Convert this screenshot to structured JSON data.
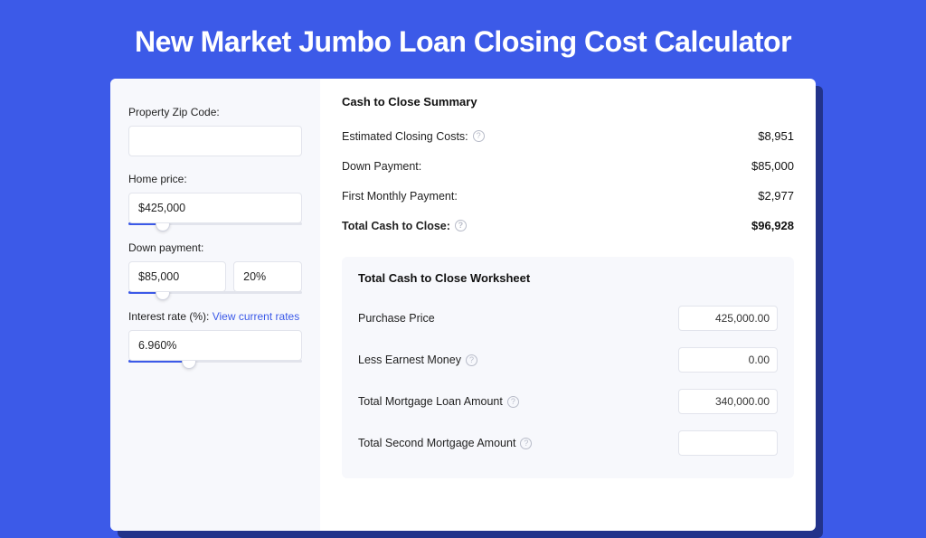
{
  "colors": {
    "page_bg": "#3c5ae8",
    "shadow_card": "#22338a",
    "card_bg": "#ffffff",
    "panel_bg": "#f7f8fc",
    "input_border": "#e2e4ec",
    "slider_fill": "#3c5ae8",
    "text": "#222222",
    "link": "#3c5ae8",
    "help_border": "#b8bcc9"
  },
  "title": "New Market Jumbo Loan Closing Cost Calculator",
  "form": {
    "zip_label": "Property Zip Code:",
    "zip_value": "",
    "home_price_label": "Home price:",
    "home_price_value": "$425,000",
    "home_price_slider_pct": 20,
    "down_payment_label": "Down payment:",
    "down_payment_value": "$85,000",
    "down_payment_pct": "20%",
    "down_payment_slider_pct": 20,
    "interest_label": "Interest rate (%):",
    "interest_link": "View current rates",
    "interest_value": "6.960%",
    "interest_slider_pct": 35
  },
  "summary": {
    "title": "Cash to Close Summary",
    "rows": [
      {
        "label": "Estimated Closing Costs:",
        "help": true,
        "value": "$8,951",
        "bold": false
      },
      {
        "label": "Down Payment:",
        "help": false,
        "value": "$85,000",
        "bold": false
      },
      {
        "label": "First Monthly Payment:",
        "help": false,
        "value": "$2,977",
        "bold": false
      },
      {
        "label": "Total Cash to Close:",
        "help": true,
        "value": "$96,928",
        "bold": true
      }
    ]
  },
  "worksheet": {
    "title": "Total Cash to Close Worksheet",
    "rows": [
      {
        "label": "Purchase Price",
        "help": false,
        "value": "425,000.00"
      },
      {
        "label": "Less Earnest Money",
        "help": true,
        "value": "0.00"
      },
      {
        "label": "Total Mortgage Loan Amount",
        "help": true,
        "value": "340,000.00"
      },
      {
        "label": "Total Second Mortgage Amount",
        "help": true,
        "value": ""
      }
    ]
  }
}
